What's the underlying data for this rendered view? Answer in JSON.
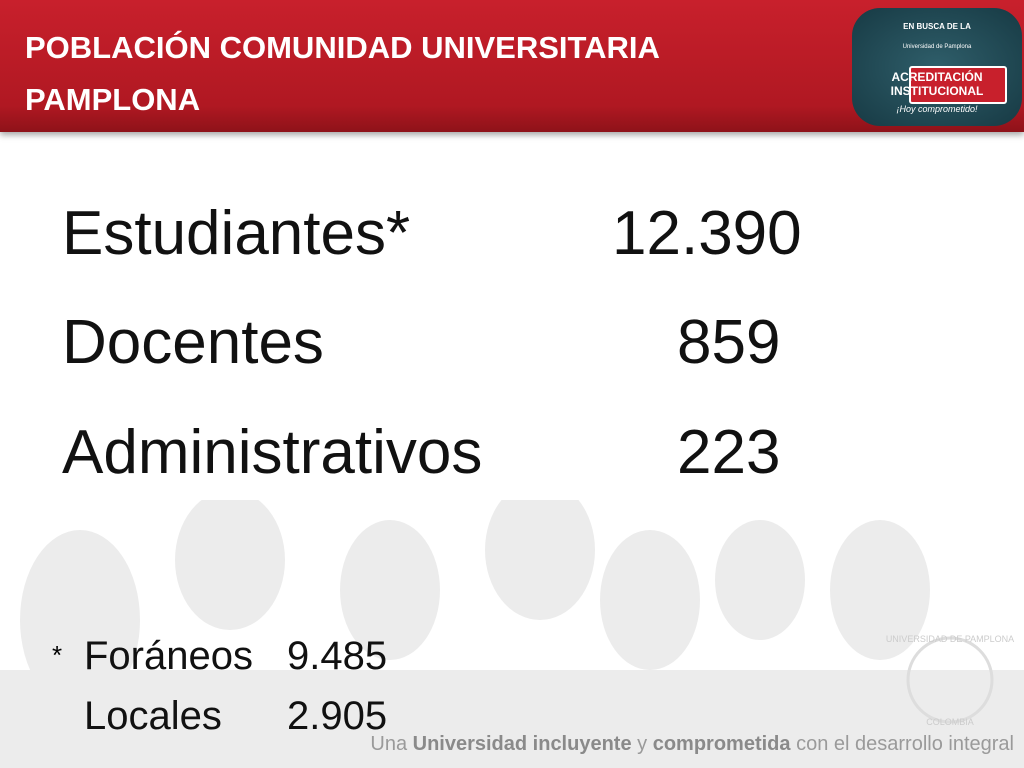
{
  "header": {
    "title": "POBLACIÓN COMUNIDAD UNIVERSITARIA PAMPLONA",
    "logo": {
      "arc": "EN BUSCA DE LA",
      "university": "Universidad de Pamplona",
      "line1": "ACREDITACIÓN",
      "line2": "INSTITUCIONAL",
      "motto": "¡Hoy comprometido!"
    }
  },
  "rows": [
    {
      "label": "Estudiantes*",
      "value": "12.390"
    },
    {
      "label": "Docentes",
      "value": "859"
    },
    {
      "label": "Administrativos",
      "value": "223"
    }
  ],
  "footnote": {
    "marker": "*",
    "rows": [
      {
        "label": "Foráneos",
        "value": "9.485"
      },
      {
        "label": "Locales",
        "value": "2.905"
      }
    ]
  },
  "seal": {
    "top": "UNIVERSIDAD DE PAMPLONA",
    "bottom": "COLOMBIA"
  },
  "tagline": [
    {
      "text": "Una ",
      "bold": false
    },
    {
      "text": "Universidad incluyente",
      "bold": true
    },
    {
      "text": " y ",
      "bold": false
    },
    {
      "text": "comprometida",
      "bold": true
    },
    {
      "text": " con el desarrollo integral",
      "bold": false
    }
  ]
}
